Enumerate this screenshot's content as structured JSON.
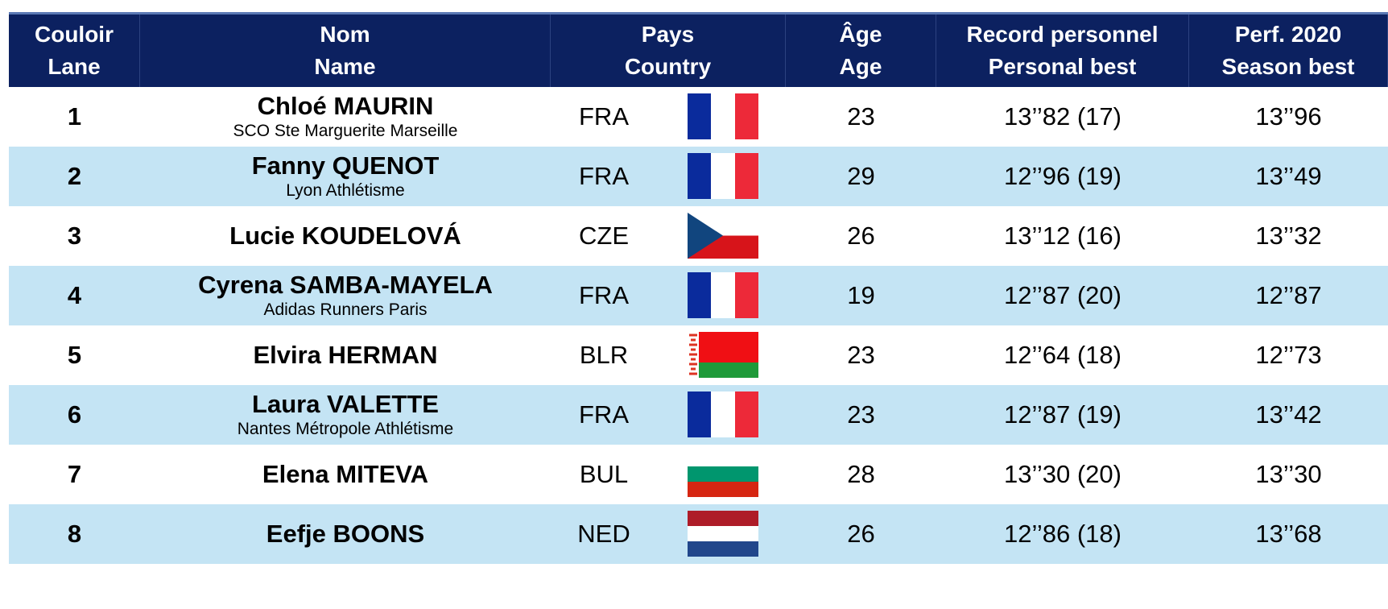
{
  "header": {
    "columns": [
      {
        "fr": "Couloir",
        "en": "Lane"
      },
      {
        "fr": "Nom",
        "en": "Name"
      },
      {
        "fr": "Pays",
        "en": "Country"
      },
      {
        "fr": "Âge",
        "en": "Age"
      },
      {
        "fr": "Record personnel",
        "en": "Personal best"
      },
      {
        "fr": "Perf. 2020",
        "en": "Season best"
      }
    ]
  },
  "table": {
    "rows": [
      {
        "lane": 1,
        "name": "Chloé MAURIN",
        "club": "SCO Ste Marguerite Marseille",
        "country": "FRA",
        "age": 23,
        "personal_best": "13’’82 (17)",
        "season_best": "13’’96"
      },
      {
        "lane": 2,
        "name": "Fanny QUENOT",
        "club": "Lyon Athlétisme",
        "country": "FRA",
        "age": 29,
        "personal_best": "12’’96 (19)",
        "season_best": "13’’49"
      },
      {
        "lane": 3,
        "name": "Lucie KOUDELOVÁ",
        "country": "CZE",
        "age": 26,
        "personal_best": "13’’12 (16)",
        "season_best": "13’’32"
      },
      {
        "lane": 4,
        "name": "Cyrena SAMBA-MAYELA",
        "club": "Adidas Runners Paris",
        "country": "FRA",
        "age": 19,
        "personal_best": "12’’87 (20)",
        "season_best": "12’’87"
      },
      {
        "lane": 5,
        "name": "Elvira HERMAN",
        "country": "BLR",
        "age": 23,
        "personal_best": "12’’64 (18)",
        "season_best": "12’’73"
      },
      {
        "lane": 6,
        "name": "Laura VALETTE",
        "club": "Nantes Métropole Athlétisme",
        "country": "FRA",
        "age": 23,
        "personal_best": "12’’87 (19)",
        "season_best": "13’’42"
      },
      {
        "lane": 7,
        "name": "Elena MITEVA",
        "country": "BUL",
        "age": 28,
        "personal_best": "13’’30 (20)",
        "season_best": "13’’30"
      },
      {
        "lane": 8,
        "name": "Eefje BOONS",
        "country": "NED",
        "age": 26,
        "personal_best": "12’’86 (18)",
        "season_best": "13’’68"
      }
    ]
  }
}
